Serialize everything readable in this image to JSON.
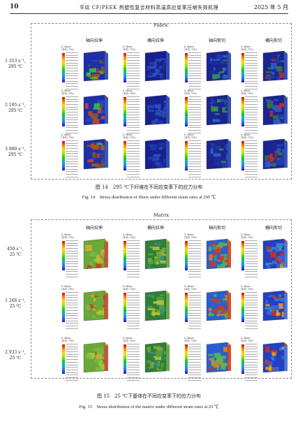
{
  "header": {
    "page_number": "10",
    "running_title": "平纹 CF/PEEK 热塑性复合材料高温高应变率压缩失效机理",
    "date": "2025 年 5 月"
  },
  "columns": [
    "轴向拉伸",
    "横向拉伸",
    "轴向剪切",
    "横向剪切"
  ],
  "legend": {
    "title": "S, Mises",
    "subtitle": "(平均: 75%)"
  },
  "fig14": {
    "panel_title": "Fabric",
    "rows": [
      {
        "rate": "1 353 s⁻¹,",
        "temp": "295 ℃"
      },
      {
        "rate": "2 195 s⁻¹,",
        "temp": "295 ℃"
      },
      {
        "rate": "3 880 s⁻¹,",
        "temp": "295 ℃"
      }
    ],
    "caption_cn": "图 14　295 ℃下纤维在不同应变率下的应力分布",
    "caption_en": "Fig. 14　Stress distribution of fibers under different strain rates at 295 ℃"
  },
  "fig15": {
    "panel_title": "Matrix",
    "rows": [
      {
        "rate": "450 s⁻¹,",
        "temp": "25 ℃"
      },
      {
        "rate": "1 266 s⁻¹,",
        "temp": "25 ℃"
      },
      {
        "rate": "2 933 s⁻¹,",
        "temp": "25 ℃"
      }
    ],
    "caption_cn": "图 15　25 ℃下基体在不同应变率下的应力分布",
    "caption_en": "Fig. 15　Stress distribution of the matrix under different strain rates at 25 ℃"
  }
}
